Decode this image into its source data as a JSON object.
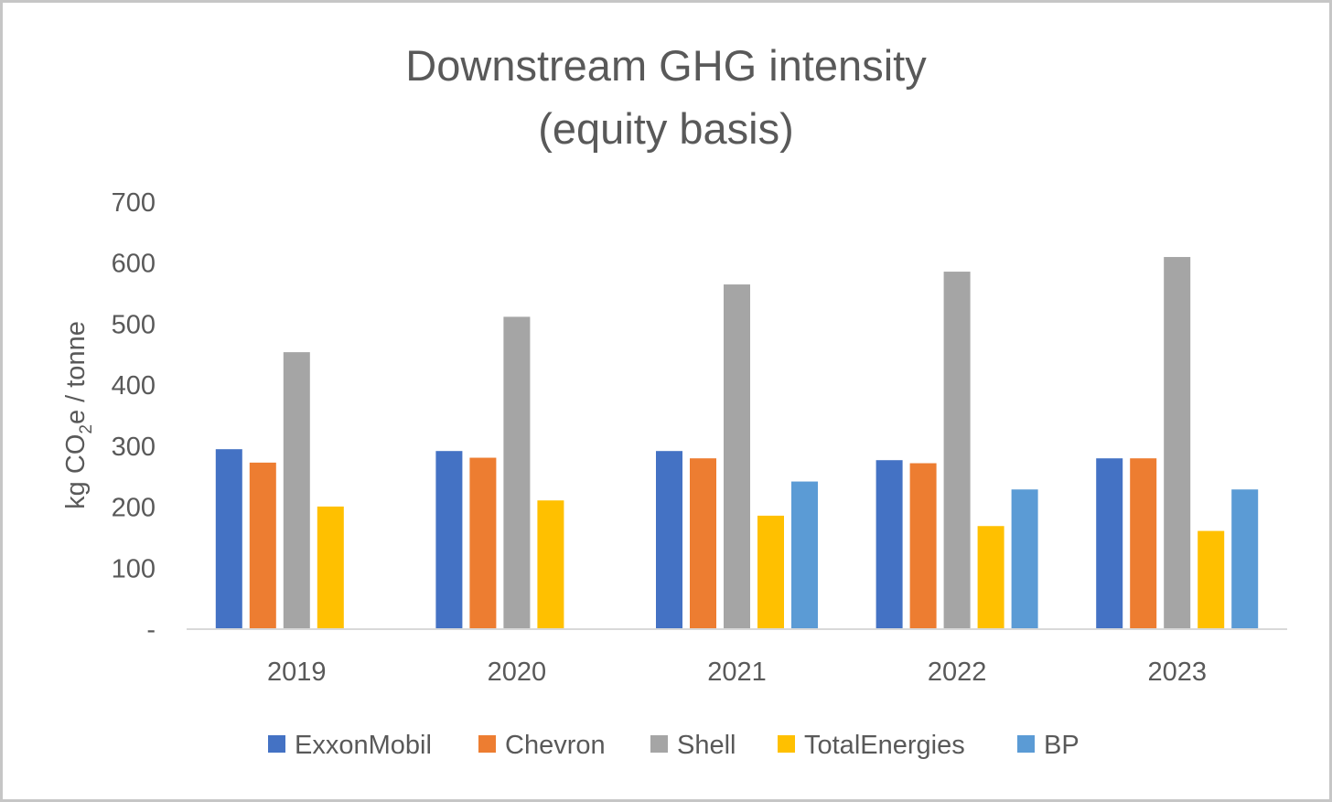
{
  "chart_data": {
    "type": "bar",
    "title_line1": "Downstream GHG intensity",
    "title_line2": "(equity basis)",
    "ylabel_prefix": "kg CO",
    "ylabel_sub": "2",
    "ylabel_suffix": "e / tonne",
    "categories": [
      "2019",
      "2020",
      "2021",
      "2022",
      "2023"
    ],
    "ylim": [
      0,
      700
    ],
    "yticks": [
      0,
      100,
      200,
      300,
      400,
      500,
      600,
      700
    ],
    "ytick_labels": [
      "-",
      "100",
      "200",
      "300",
      "400",
      "500",
      "600",
      "700"
    ],
    "grid": false,
    "legend_position": "bottom",
    "series": [
      {
        "name": "ExxonMobil",
        "color": "#4472C4",
        "values": [
          295,
          292,
          292,
          277,
          280
        ]
      },
      {
        "name": "Chevron",
        "color": "#ED7D31",
        "values": [
          273,
          281,
          280,
          272,
          280
        ]
      },
      {
        "name": "Shell",
        "color": "#A5A5A5",
        "values": [
          454,
          512,
          565,
          586,
          610
        ]
      },
      {
        "name": "TotalEnergies",
        "color": "#FFC000",
        "values": [
          201,
          211,
          186,
          169,
          161
        ]
      },
      {
        "name": "BP",
        "color": "#5B9BD5",
        "values": [
          null,
          null,
          242,
          229,
          229
        ]
      }
    ]
  }
}
